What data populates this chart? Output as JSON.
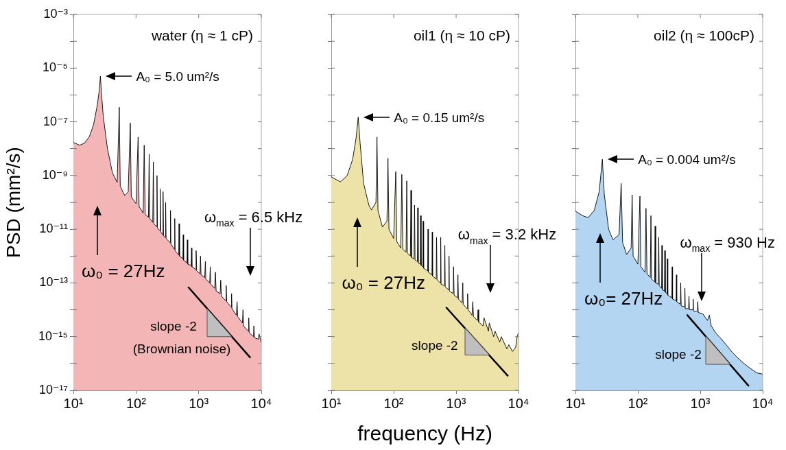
{
  "chart_data": [
    {
      "type": "area",
      "title": "water (η ≈ 1 cP)",
      "ylabel": "PSD (mm²/s)",
      "log": "xy",
      "xlim": [
        10,
        10000
      ],
      "ylim": [
        1e-17,
        0.001
      ],
      "xticks": [
        {
          "value": 10,
          "label": "10¹"
        },
        {
          "value": 100,
          "label": "10²"
        },
        {
          "value": 1000,
          "label": "10³"
        },
        {
          "value": 10000,
          "label": "10⁴"
        }
      ],
      "yticks": [
        {
          "value": 0.001,
          "label": "10⁻³"
        },
        {
          "value": 0.0001,
          "label": null
        },
        {
          "value": 1e-05,
          "label": "10⁻⁵"
        },
        {
          "value": 1e-06,
          "label": null
        },
        {
          "value": 1e-07,
          "label": "10⁻⁷"
        },
        {
          "value": 1e-08,
          "label": null
        },
        {
          "value": 1e-09,
          "label": "10⁻⁹"
        },
        {
          "value": 1e-10,
          "label": null
        },
        {
          "value": 1e-11,
          "label": "10⁻¹¹"
        },
        {
          "value": 1e-12,
          "label": null
        },
        {
          "value": 1e-13,
          "label": "10⁻¹³"
        },
        {
          "value": 1e-14,
          "label": null
        },
        {
          "value": 1e-15,
          "label": "10⁻¹⁵"
        },
        {
          "value": 1e-16,
          "label": null
        },
        {
          "value": 1e-17,
          "label": "10⁻¹⁷"
        }
      ],
      "x": [
        10,
        12.6,
        15,
        18,
        21,
        24,
        26,
        27,
        28,
        30,
        35,
        42,
        50,
        54,
        56,
        66,
        75,
        81,
        84,
        100,
        108,
        112,
        130,
        135,
        140,
        158,
        162,
        166,
        185,
        189,
        193,
        212,
        216,
        220,
        240,
        243,
        247,
        267,
        270,
        275,
        294,
        297,
        302,
        350,
        355,
        360,
        410,
        415,
        420,
        480,
        486,
        495,
        560,
        567,
        575,
        650,
        660,
        670,
        760,
        770,
        780,
        900,
        910,
        930,
        1050,
        1070,
        1090,
        1250,
        1280,
        1300,
        1500,
        1530,
        1560,
        1800,
        1850,
        1900,
        2200,
        2250,
        2300,
        2700,
        2750,
        2800,
        3300,
        3350,
        3400,
        4000,
        4100,
        4200,
        5000,
        5100,
        5200,
        6200,
        6300,
        6400,
        7500,
        7600,
        7800,
        9000,
        9200,
        10000
      ],
      "series": [
        {
          "color": "#f3b5b5",
          "values": [
            1.7e-08,
            1.35e-08,
            1.6e-08,
            2.8e-08,
            7.9e-08,
            4e-07,
            1.6e-06,
            5e-06,
            1.26e-06,
            1.6e-07,
            1e-08,
            1.26e-09,
            5.6e-10,
            3.5e-07,
            4e-10,
            1.8e-10,
            2.5e-10,
            9e-08,
            1.6e-10,
            9e-11,
            2.7e-08,
            7e-11,
            4e-11,
            1.35e-08,
            3.5e-11,
            2.8e-11,
            6.3e-09,
            2.5e-11,
            1.8e-11,
            3.2e-09,
            1.6e-11,
            1.26e-11,
            1e-09,
            1.1e-11,
            9e-12,
            3.2e-10,
            8e-12,
            6.3e-12,
            2.5e-10,
            5.6e-12,
            5e-12,
            1e-10,
            4.5e-12,
            3.2e-12,
            5e-11,
            2.8e-12,
            1.8e-12,
            2.5e-11,
            1.6e-12,
            1.1e-12,
            1.6e-11,
            1e-12,
            8e-13,
            6.3e-12,
            7e-13,
            5.6e-13,
            4e-12,
            5e-13,
            4.5e-13,
            2e-12,
            4e-13,
            3.2e-13,
            1.6e-12,
            2.8e-13,
            2.2e-13,
            1e-12,
            2e-13,
            1.6e-13,
            6.3e-13,
            1.4e-13,
            1e-13,
            4e-13,
            9e-14,
            6.3e-14,
            2.5e-13,
            5e-14,
            4e-14,
            1.26e-13,
            3.2e-14,
            2.2e-14,
            8e-14,
            2e-14,
            1.26e-14,
            4e-14,
            1.1e-14,
            6.3e-15,
            2e-14,
            5.6e-15,
            3.2e-15,
            1e-14,
            2.5e-15,
            1.6e-15,
            5e-15,
            1.4e-15,
            1e-15,
            2.5e-15,
            9e-16,
            8e-16,
            1.26e-15,
            5.8e-16
          ]
        },
        {
          "type": "line",
          "color": "#000000",
          "x": [
            690,
            6600
          ],
          "values": [
            6.8e-14,
            1.7e-16
          ]
        }
      ],
      "annotations": [
        "A₀ = 5.0 um²/s",
        "ω₀ = 27Hz",
        "ω$_{max}$ = 6.5 kHz",
        "slope -2",
        "(Brownian noise)"
      ]
    },
    {
      "type": "area",
      "title": "oil1 (η ≈ 10 cP)",
      "xlabel": "frequency (Hz)",
      "log": "xy",
      "tick_labels": "x",
      "xlim": [
        10,
        10000
      ],
      "ylim": [
        1e-17,
        0.001
      ],
      "xticks": [
        {
          "value": 10,
          "label": "10¹"
        },
        {
          "value": 100,
          "label": "10²"
        },
        {
          "value": 1000,
          "label": "10³"
        },
        {
          "value": 10000,
          "label": "10⁴"
        }
      ],
      "yticks": [
        {
          "value": 0.001,
          "label": null
        },
        {
          "value": 0.0001,
          "label": null
        },
        {
          "value": 1e-05,
          "label": null
        },
        {
          "value": 1e-06,
          "label": null
        },
        {
          "value": 1e-07,
          "label": null
        },
        {
          "value": 1e-08,
          "label": null
        },
        {
          "value": 1e-09,
          "label": null
        },
        {
          "value": 1e-10,
          "label": null
        },
        {
          "value": 1e-11,
          "label": null
        },
        {
          "value": 1e-12,
          "label": null
        },
        {
          "value": 1e-13,
          "label": null
        },
        {
          "value": 1e-14,
          "label": null
        },
        {
          "value": 1e-15,
          "label": null
        },
        {
          "value": 1e-16,
          "label": null
        },
        {
          "value": 1e-17,
          "label": null
        }
      ],
      "x": [
        10,
        14,
        18,
        22,
        25,
        27,
        29,
        33,
        40,
        44,
        52,
        54,
        56,
        66,
        78,
        81,
        84,
        100,
        108,
        112,
        130,
        135,
        140,
        158,
        162,
        166,
        185,
        189,
        193,
        212,
        216,
        220,
        240,
        243,
        247,
        267,
        270,
        275,
        294,
        297,
        302,
        350,
        355,
        360,
        410,
        415,
        420,
        480,
        486,
        495,
        560,
        567,
        575,
        650,
        660,
        670,
        760,
        770,
        780,
        900,
        910,
        930,
        1050,
        1070,
        1090,
        1250,
        1280,
        1300,
        1500,
        1530,
        1560,
        1800,
        1850,
        1900,
        2200,
        2250,
        2300,
        2700,
        2800,
        3300,
        3400,
        4000,
        4200,
        5000,
        5300,
        6500,
        7000,
        8000,
        9000,
        9500,
        10000
      ],
      "series": [
        {
          "color": "#ede3a9",
          "values": [
            8.9e-10,
            5.8e-10,
            1e-09,
            4e-09,
            2.5e-08,
            1.5e-07,
            1.6e-08,
            5e-10,
            7.9e-11,
            5.2e-11,
            1e-10,
            2.7e-08,
            5e-11,
            1.2e-11,
            2e-11,
            4.4e-09,
            1e-11,
            4.5e-12,
            1.4e-09,
            3.5e-12,
            2e-12,
            1.1e-09,
            1.8e-12,
            1.4e-12,
            6.3e-10,
            1.3e-12,
            1e-12,
            2.8e-10,
            8.9e-13,
            7.9e-13,
            7.9e-11,
            7.1e-13,
            6.3e-13,
            6.3e-11,
            5.6e-13,
            5e-13,
            3.2e-11,
            4.5e-13,
            4e-13,
            2e-11,
            3.5e-13,
            2.8e-13,
            1e-11,
            2.5e-13,
            2e-13,
            7.9e-12,
            1.8e-13,
            1.4e-13,
            5e-12,
            1.3e-13,
            1e-13,
            5e-12,
            8.9e-14,
            7.9e-14,
            2.5e-12,
            7.1e-14,
            5.6e-14,
            1e-12,
            5e-14,
            4e-14,
            4e-13,
            3.5e-14,
            2.8e-14,
            2e-13,
            2.5e-14,
            1.8e-14,
            1e-13,
            1.6e-14,
            1.1e-14,
            4e-14,
            1e-14,
            6.3e-15,
            2e-14,
            5.6e-15,
            4e-15,
            1e-14,
            3.5e-15,
            2.5e-15,
            5e-15,
            1.6e-15,
            3.2e-15,
            1e-15,
            1.6e-15,
            6.3e-16,
            1e-15,
            3.5e-16,
            5e-16,
            2.8e-16,
            4e-16,
            1e-15,
            1.4e-15
          ]
        },
        {
          "type": "line",
          "color": "#000000",
          "x": [
            700,
            6700
          ],
          "values": [
            1.2e-14,
            3.5e-17
          ]
        }
      ],
      "annotations": [
        "A₀ = 0.15 um²/s",
        "ω₀ = 27Hz",
        "ω$_{max}$ = 3.2 kHz",
        "slope -2"
      ]
    },
    {
      "type": "area",
      "title": "oil2 (η ≈ 100cP)",
      "log": "xy",
      "tick_labels": "x",
      "xlim": [
        10,
        10000
      ],
      "ylim": [
        1e-17,
        0.001
      ],
      "xticks": [
        {
          "value": 10,
          "label": "10¹"
        },
        {
          "value": 100,
          "label": "10²"
        },
        {
          "value": 1000,
          "label": "10³"
        },
        {
          "value": 10000,
          "label": "10⁴"
        }
      ],
      "yticks": [
        {
          "value": 0.001,
          "label": null
        },
        {
          "value": 0.0001,
          "label": null
        },
        {
          "value": 1e-05,
          "label": null
        },
        {
          "value": 1e-06,
          "label": null
        },
        {
          "value": 1e-07,
          "label": null
        },
        {
          "value": 1e-08,
          "label": null
        },
        {
          "value": 1e-09,
          "label": null
        },
        {
          "value": 1e-10,
          "label": null
        },
        {
          "value": 1e-11,
          "label": null
        },
        {
          "value": 1e-12,
          "label": null
        },
        {
          "value": 1e-13,
          "label": null
        },
        {
          "value": 1e-14,
          "label": null
        },
        {
          "value": 1e-15,
          "label": null
        },
        {
          "value": 1e-16,
          "label": null
        },
        {
          "value": 1e-17,
          "label": null
        }
      ],
      "x": [
        10,
        13,
        16,
        20,
        24,
        27,
        29,
        34,
        40,
        50,
        54,
        57,
        66,
        78,
        81,
        84,
        100,
        108,
        112,
        130,
        135,
        140,
        158,
        162,
        166,
        185,
        189,
        193,
        212,
        216,
        220,
        240,
        243,
        247,
        267,
        270,
        275,
        294,
        297,
        302,
        350,
        355,
        360,
        410,
        415,
        420,
        480,
        486,
        495,
        560,
        567,
        575,
        650,
        660,
        670,
        760,
        770,
        780,
        900,
        910,
        930,
        1100,
        1300,
        1400,
        1500,
        1800,
        2200,
        2700,
        3300,
        4000,
        5000,
        6500,
        8000,
        10000
      ],
      "series": [
        {
          "color": "#b3d5f1",
          "values": [
            4.7e-11,
            3.2e-11,
            2.7e-11,
            5e-11,
            2.5e-10,
            4e-09,
            2e-10,
            1e-11,
            4e-12,
            6.3e-12,
            5.1e-10,
            3.2e-12,
            1.15e-12,
            2e-12,
            1.9e-10,
            1e-12,
            5e-13,
            1.7e-10,
            4e-13,
            2.5e-13,
            6e-11,
            2.2e-13,
            1.6e-13,
            3.2e-11,
            1.4e-13,
            1.1e-13,
            1.3e-11,
            1e-13,
            8.9e-14,
            5e-12,
            7.9e-14,
            6.3e-14,
            2.5e-12,
            5.6e-14,
            5e-14,
            1.6e-12,
            4.5e-14,
            4e-14,
            7.9e-13,
            3.5e-14,
            2.8e-14,
            4e-13,
            2.5e-14,
            2.2e-14,
            2e-13,
            2e-14,
            1.6e-14,
            1e-13,
            1.4e-14,
            1.3e-14,
            6.3e-14,
            1.1e-14,
            1.1e-14,
            3.2e-14,
            1e-14,
            1e-14,
            2.5e-14,
            8.9e-15,
            8.9e-15,
            2e-14,
            7.9e-15,
            7.1e-15,
            4e-15,
            6.3e-15,
            2.5e-15,
            1.3e-15,
            7.9e-16,
            4.5e-16,
            2.5e-16,
            1.6e-16,
            1e-16,
            6.3e-17,
            4.5e-17,
            4e-17
          ]
        },
        {
          "type": "line",
          "color": "#000000",
          "x": [
            620,
            5900
          ],
          "values": [
            6.3e-15,
            1.5e-17
          ]
        }
      ],
      "annotations": [
        "A₀ = 0.004 um²/s",
        "ω₀= 27Hz",
        "ω$_{max}$ = 930 Hz",
        "slope -2"
      ]
    }
  ]
}
